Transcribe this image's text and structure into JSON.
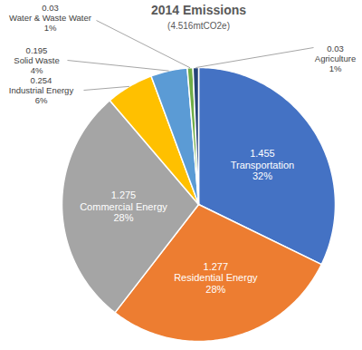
{
  "chart_data": {
    "type": "pie",
    "title": "2014 Emissions",
    "subtitle": "(4.516mtCO2e)",
    "categories": [
      "Transportation",
      "Residential Energy",
      "Commercial Energy",
      "Industrial Energy",
      "Solid Waste",
      "Water & Waste Water",
      "Agriculture"
    ],
    "values": [
      1.455,
      1.277,
      1.275,
      0.254,
      0.195,
      0.03,
      0.03
    ],
    "percent_labels": [
      "32%",
      "28%",
      "28%",
      "6%",
      "4%",
      "1%",
      "1%"
    ],
    "colors": [
      "#4472c4",
      "#ed7d31",
      "#a5a5a5",
      "#ffc000",
      "#5b9bd5",
      "#70ad47",
      "#264478"
    ],
    "data_labels": true
  }
}
